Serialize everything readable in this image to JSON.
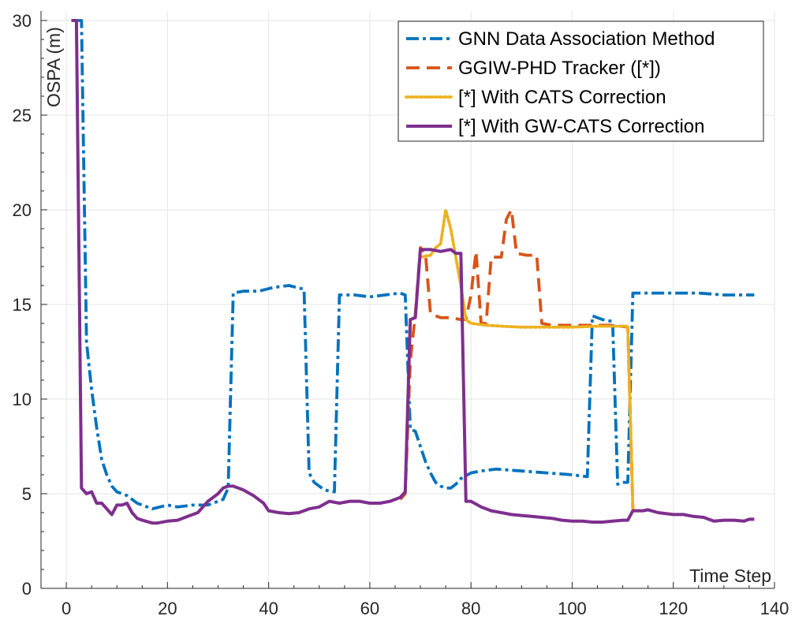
{
  "chart_data": {
    "type": "line",
    "title": "",
    "xlabel": "Time Step",
    "ylabel": "OSPA (m)",
    "xlim": [
      -5,
      140
    ],
    "ylim": [
      0,
      30.5
    ],
    "xticks": [
      0,
      20,
      40,
      60,
      80,
      100,
      120,
      140
    ],
    "yticks": [
      0,
      5,
      10,
      15,
      20,
      25,
      30
    ],
    "grid": true,
    "legend_position": "top-right",
    "series": [
      {
        "name": "GNN Data Association Method",
        "color": "#0072BD",
        "style": "dashdot",
        "points": [
          [
            2,
            30
          ],
          [
            3,
            30
          ],
          [
            4,
            13
          ],
          [
            5,
            10.5
          ],
          [
            6,
            8.5
          ],
          [
            7,
            6.8
          ],
          [
            8,
            6.0
          ],
          [
            9,
            5.4
          ],
          [
            10,
            5.1
          ],
          [
            12,
            4.9
          ],
          [
            14,
            4.5
          ],
          [
            17,
            4.2
          ],
          [
            20,
            4.4
          ],
          [
            22,
            4.3
          ],
          [
            25,
            4.4
          ],
          [
            28,
            4.4
          ],
          [
            31,
            4.7
          ],
          [
            32,
            5.3
          ],
          [
            33,
            15.6
          ],
          [
            35,
            15.7
          ],
          [
            38,
            15.7
          ],
          [
            41,
            15.9
          ],
          [
            44,
            16.0
          ],
          [
            47,
            15.8
          ],
          [
            48,
            6.1
          ],
          [
            49,
            5.6
          ],
          [
            50,
            5.4
          ],
          [
            51,
            5.2
          ],
          [
            53,
            5.1
          ],
          [
            54,
            15.5
          ],
          [
            57,
            15.5
          ],
          [
            60,
            15.4
          ],
          [
            63,
            15.5
          ],
          [
            66,
            15.6
          ],
          [
            67,
            15.5
          ],
          [
            68,
            8.4
          ],
          [
            69,
            8.3
          ],
          [
            70,
            7.5
          ],
          [
            71,
            6.7
          ],
          [
            72,
            6.1
          ],
          [
            73,
            5.6
          ],
          [
            74,
            5.4
          ],
          [
            75,
            5.3
          ],
          [
            76,
            5.3
          ],
          [
            77,
            5.5
          ],
          [
            78,
            5.8
          ],
          [
            80,
            6.1
          ],
          [
            82,
            6.2
          ],
          [
            85,
            6.3
          ],
          [
            90,
            6.2
          ],
          [
            95,
            6.1
          ],
          [
            100,
            6.0
          ],
          [
            103,
            5.9
          ],
          [
            104,
            14.4
          ],
          [
            106,
            14.2
          ],
          [
            108,
            14.1
          ],
          [
            109,
            5.5
          ],
          [
            110,
            5.6
          ],
          [
            111,
            5.6
          ],
          [
            112,
            15.6
          ],
          [
            115,
            15.6
          ],
          [
            120,
            15.6
          ],
          [
            125,
            15.6
          ],
          [
            130,
            15.5
          ],
          [
            136,
            15.5
          ]
        ]
      },
      {
        "name": "GGIW-PHD Tracker ([*])",
        "color": "#D95319",
        "style": "dashed",
        "points": [
          [
            66,
            4.7
          ],
          [
            67,
            5.0
          ],
          [
            68,
            12.0
          ],
          [
            69,
            14.5
          ],
          [
            70,
            18.0
          ],
          [
            71,
            17.7
          ],
          [
            72,
            14.5
          ],
          [
            74,
            14.3
          ],
          [
            76,
            14.3
          ],
          [
            78,
            14.2
          ],
          [
            79,
            14.2
          ],
          [
            80,
            15.5
          ],
          [
            81,
            17.8
          ],
          [
            82,
            14.0
          ],
          [
            83,
            14.0
          ],
          [
            84,
            17.5
          ],
          [
            86,
            17.5
          ],
          [
            87,
            19.5
          ],
          [
            88,
            20.0
          ],
          [
            89,
            17.7
          ],
          [
            91,
            17.6
          ],
          [
            93,
            17.6
          ],
          [
            94,
            14.0
          ],
          [
            96,
            13.9
          ],
          [
            100,
            13.9
          ],
          [
            104,
            13.9
          ],
          [
            108,
            13.9
          ],
          [
            111,
            13.8
          ],
          [
            112,
            4.2
          ]
        ]
      },
      {
        "name": "[*] With CATS Correction",
        "color": "#EDB120",
        "style": "dotted",
        "points": [
          [
            70,
            17.5
          ],
          [
            72,
            17.6
          ],
          [
            73,
            18.0
          ],
          [
            74,
            18.2
          ],
          [
            75,
            20.0
          ],
          [
            76,
            19.0
          ],
          [
            77,
            17.5
          ],
          [
            78,
            16.0
          ],
          [
            79,
            14.2
          ],
          [
            80,
            14.0
          ],
          [
            83,
            13.9
          ],
          [
            86,
            13.85
          ],
          [
            90,
            13.8
          ],
          [
            95,
            13.8
          ],
          [
            100,
            13.8
          ],
          [
            105,
            13.85
          ],
          [
            108,
            13.85
          ],
          [
            111,
            13.85
          ],
          [
            112,
            4.2
          ]
        ]
      },
      {
        "name": "[*] With GW-CATS Correction",
        "color": "#7E2F8E",
        "style": "solid",
        "points": [
          [
            1,
            30
          ],
          [
            2,
            30
          ],
          [
            3,
            5.3
          ],
          [
            4,
            5.0
          ],
          [
            5,
            5.1
          ],
          [
            6,
            4.5
          ],
          [
            7,
            4.5
          ],
          [
            8,
            4.2
          ],
          [
            9,
            3.9
          ],
          [
            10,
            4.4
          ],
          [
            11,
            4.4
          ],
          [
            12,
            4.5
          ],
          [
            13,
            4.0
          ],
          [
            14,
            3.7
          ],
          [
            15,
            3.6
          ],
          [
            17,
            3.45
          ],
          [
            18,
            3.45
          ],
          [
            20,
            3.55
          ],
          [
            22,
            3.6
          ],
          [
            24,
            3.8
          ],
          [
            26,
            4.0
          ],
          [
            28,
            4.6
          ],
          [
            30,
            5.0
          ],
          [
            31,
            5.3
          ],
          [
            32,
            5.4
          ],
          [
            33,
            5.4
          ],
          [
            35,
            5.2
          ],
          [
            37,
            4.9
          ],
          [
            39,
            4.5
          ],
          [
            40,
            4.1
          ],
          [
            42,
            4.0
          ],
          [
            44,
            3.95
          ],
          [
            46,
            4.0
          ],
          [
            48,
            4.2
          ],
          [
            50,
            4.3
          ],
          [
            52,
            4.6
          ],
          [
            54,
            4.5
          ],
          [
            56,
            4.6
          ],
          [
            58,
            4.6
          ],
          [
            60,
            4.5
          ],
          [
            62,
            4.5
          ],
          [
            64,
            4.6
          ],
          [
            66,
            4.8
          ],
          [
            67,
            5.1
          ],
          [
            68,
            14.2
          ],
          [
            69,
            14.3
          ],
          [
            70,
            17.9
          ],
          [
            72,
            17.9
          ],
          [
            74,
            17.8
          ],
          [
            76,
            17.9
          ],
          [
            77,
            17.7
          ],
          [
            78,
            17.7
          ],
          [
            79,
            4.6
          ],
          [
            80,
            4.6
          ],
          [
            82,
            4.3
          ],
          [
            84,
            4.1
          ],
          [
            86,
            4.0
          ],
          [
            88,
            3.9
          ],
          [
            90,
            3.85
          ],
          [
            92,
            3.8
          ],
          [
            94,
            3.75
          ],
          [
            96,
            3.7
          ],
          [
            98,
            3.6
          ],
          [
            100,
            3.55
          ],
          [
            102,
            3.55
          ],
          [
            104,
            3.5
          ],
          [
            106,
            3.5
          ],
          [
            108,
            3.55
          ],
          [
            110,
            3.6
          ],
          [
            111,
            3.6
          ],
          [
            112,
            4.1
          ],
          [
            114,
            4.1
          ],
          [
            115,
            4.15
          ],
          [
            117,
            4.0
          ],
          [
            120,
            3.9
          ],
          [
            122,
            3.9
          ],
          [
            124,
            3.8
          ],
          [
            126,
            3.75
          ],
          [
            128,
            3.55
          ],
          [
            130,
            3.6
          ],
          [
            132,
            3.6
          ],
          [
            134,
            3.55
          ],
          [
            135,
            3.65
          ],
          [
            136,
            3.65
          ]
        ]
      }
    ]
  }
}
